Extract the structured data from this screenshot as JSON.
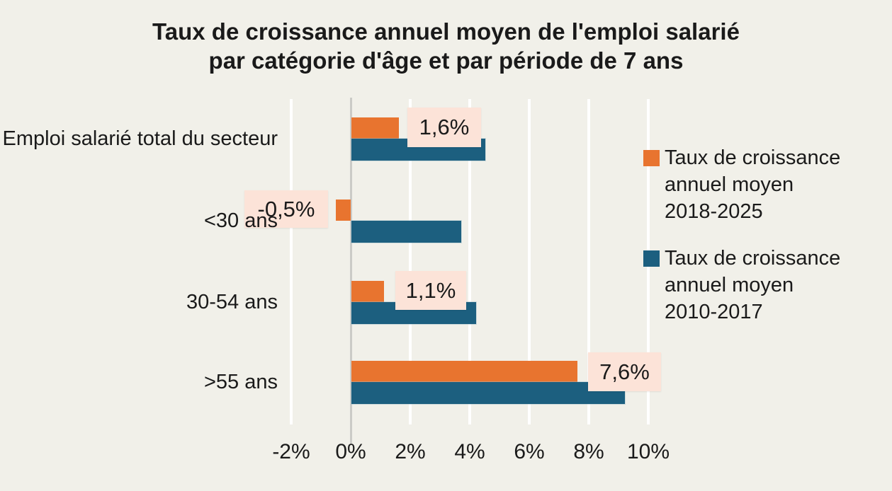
{
  "title": {
    "line1": "Taux de croissance annuel moyen de l'emploi salarié",
    "line2": "par catégorie d'âge et par période de 7 ans"
  },
  "chart_data": {
    "type": "bar",
    "orientation": "horizontal",
    "title": "Taux de croissance annuel moyen de l'emploi salarié par catégorie d'âge et par période de 7 ans",
    "categories": [
      "Emploi salarié total du secteur",
      "<30 ans",
      "30-54 ans",
      ">55 ans"
    ],
    "series": [
      {
        "name": "Taux de croissance annuel moyen 2018-2025",
        "color": "#e8742f",
        "values": [
          1.6,
          -0.5,
          1.1,
          7.6
        ]
      },
      {
        "name": "Taux de croissance annuel moyen 2010-2017",
        "color": "#1c5f7f",
        "values": [
          4.5,
          3.7,
          4.2,
          9.2
        ]
      }
    ],
    "data_labels": [
      "1,6%",
      "-0,5%",
      "1,1%",
      "7,6%"
    ],
    "data_labels_series": "2018-2025",
    "x_ticks": [
      "-2%",
      "0%",
      "2%",
      "4%",
      "6%",
      "8%",
      "10%"
    ],
    "x_tick_values": [
      -2,
      0,
      2,
      4,
      6,
      8,
      10
    ],
    "xlim": [
      -2.4,
      10.4
    ],
    "xlabel": "",
    "ylabel": "",
    "grid": "vertical",
    "legend_position": "right"
  },
  "legend": {
    "items": [
      {
        "color": "#e8742f",
        "lines": [
          "Taux de croissance",
          "annuel moyen",
          "2018-2025"
        ]
      },
      {
        "color": "#1c5f7f",
        "lines": [
          "Taux de croissance",
          "annuel moyen",
          "2010-2017"
        ]
      }
    ]
  },
  "colors": {
    "background": "#f1f0e9",
    "bar_orange": "#e8742f",
    "bar_blue": "#1c5f7f",
    "data_label_background": "#fce3d8",
    "gridline": "#ffffff",
    "axis_line": "#cbcbc7",
    "text": "#1a1a1a"
  }
}
